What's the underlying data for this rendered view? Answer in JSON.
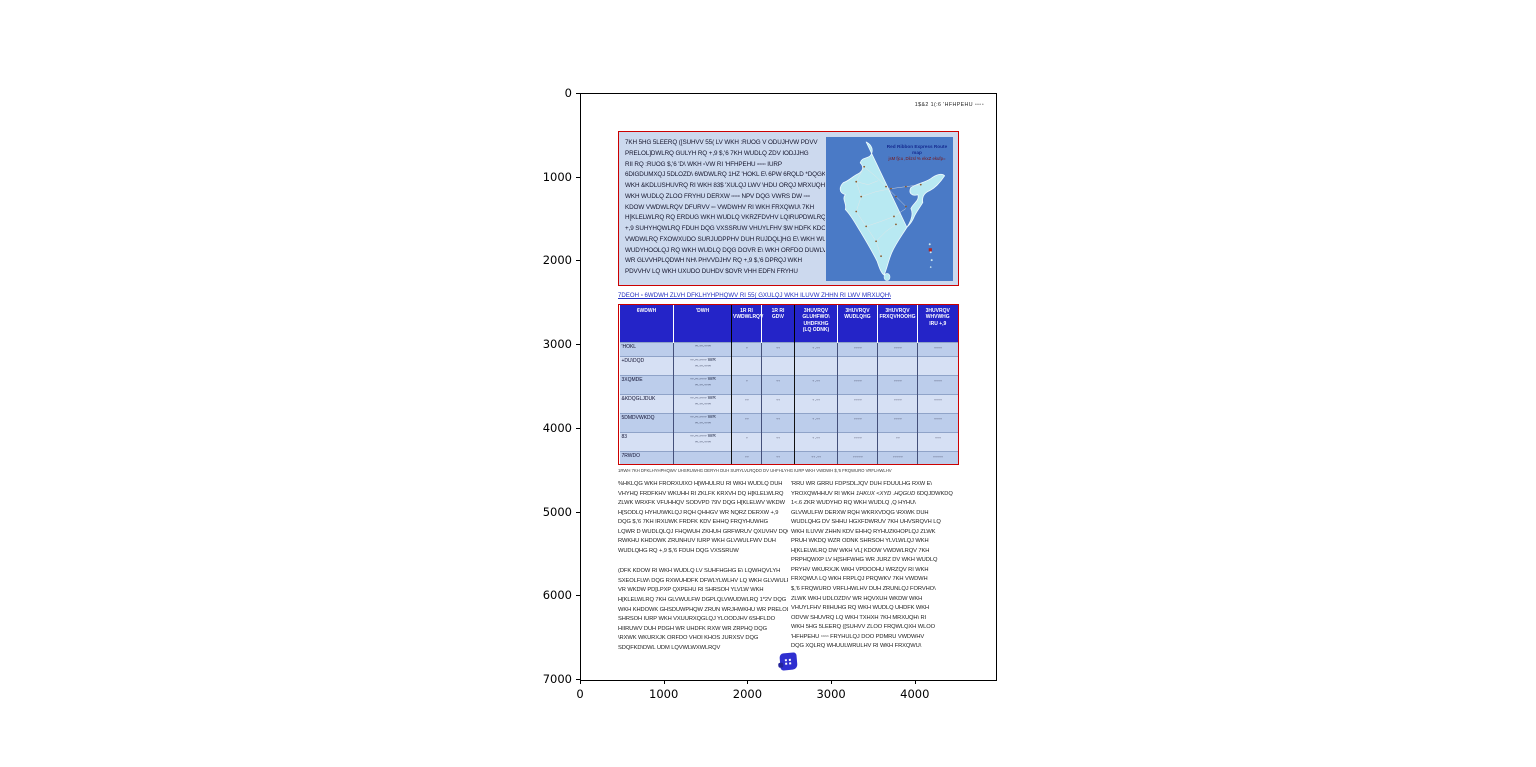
{
  "accent_colors": {
    "box_border": "#cc0000",
    "box_fill": "#ccd9ee",
    "table_header": "#2424c8",
    "row_shade_a": "#bccdeb",
    "row_shade_b": "#d6e0f4",
    "map_bg": "#4a7ac6",
    "map_land": "#b8e9f2",
    "caption_blue": "#2430c0",
    "stamp_blue": "#2f2fd0",
    "map_marker_red": "#b22222"
  },
  "axes": {
    "x_ticks": [
      "0",
      "1000",
      "2000",
      "3000",
      "4000"
    ],
    "y_ticks": [
      "0",
      "1000",
      "2000",
      "3000",
      "4000",
      "5000",
      "6000",
      "7000"
    ]
  },
  "page": {
    "header_right": "1$&2 1(:6  'HFHPEHU ▫▫▫▫",
    "intro_box": {
      "lines": [
        "7KH 5HG 5LEERQ ([SUHVV 55( LV WKH :RUOG V ODUJHVW PDVV",
        "PRELOL]DWLRQ GULYH RQ +,9 $,'6 7KH WUDLQ ZDV IODJJHG",
        "RII RQ :RUOG $,'6 'D\\ WKH ▫VW RI 'HFHPEHU ▫▫▫▫ IURP",
        "6DIGDUMXQJ 5DLOZD\\ 6WDWLRQ 1HZ 'HOKL E\\ 6PW 6RQLD *DQGKL",
        "WKH &KDLUSHUVRQ RI WKH 83$ 'XULQJ LWV \\HDU ORQJ MRXUQH\\",
        "WKH WUDLQ ZLOO FRYHU DERXW ▫▫▫▫ NPV DQG VWRS DW ▫▫▫",
        "KDOW VWDWLRQV DFURVV ▫▫ VWDWHV RI WKH FRXQWU\\ 7KH",
        "H[KLELWLRQ RQ ERDUG WKH WUDLQ VKRZFDVHV LQIRUPDWLRQ RQ",
        "+,9 SUHYHQWLRQ FDUH DQG VXSSRUW VHUYLFHV $W HDFK KDOW",
        "VWDWLRQ FXOWXUDO SURJUDPPHV DUH RUJDQL]HG E\\ WKH WURXSHV",
        "WUDYHOOLQJ RQ WKH WUDLQ DQG DOVR E\\ WKH ORFDO DUWLVWV",
        "WR GLVVHPLQDWH NH\\ PHVVDJHV RQ +,9 $,'6 DPRQJ WKH",
        "PDVVHV LQ WKH UXUDO DUHDV $OVR VHH EDFN FRYHU"
      ]
    },
    "map": {
      "title_line1": "Red Ribbon Express Route map",
      "title_line2": "jsM fjcu ,Dlizsl % ekxZ ekufp="
    },
    "table_caption": "7DEOH ▫  6WDWH ZLVH DFKLHYHPHQWV RI 55( GXULQJ WKH ILUVW ZHHN RI LWV MRXUQH\\",
    "table": {
      "headers": [
        "6WDWH",
        "'DWH",
        "1R RI\nVWDWLRQV",
        "1R RI\nGD\\V",
        "3HUVRQV\nGLUHFWO\\\nUHDFKHG\n(LQ ODNK)",
        "3HUVRQV\nWUDLQHG",
        "3HUVRQV\nFRXQVHOOHG",
        "3HUVRQV\nWHVWHG\nIRU +,9"
      ],
      "rows": [
        {
          "state": "'HOKL",
          "date": "▫▫.▫▫.▫▫▫▫",
          "values": [
            "▫",
            "▫▫",
            "▫.▫▫",
            "▫▫▫▫",
            "▫▫▫▫",
            "▫▫▫▫"
          ]
        },
        {
          "state": "+DU\\DQD",
          "date": "▫▫.▫▫.▫▫▫▫ WR\n▫▫.▫▫.▫▫▫▫",
          "values": [
            "",
            "",
            "",
            "",
            "",
            ""
          ]
        },
        {
          "state": "3XQMDE",
          "date": "▫▫.▫▫.▫▫▫▫ WR\n▫▫.▫▫.▫▫▫▫",
          "values": [
            "▫",
            "▫▫",
            "▫.▫▫",
            "▫▫▫▫",
            "▫▫▫▫",
            "▫▫▫▫"
          ]
        },
        {
          "state": "&KDQGLJDUK",
          "date": "▫▫.▫▫.▫▫▫▫ WR\n▫▫.▫▫.▫▫▫▫",
          "values": [
            "▫▫",
            "▫▫",
            "▫.▫▫",
            "▫▫▫▫",
            "▫▫▫▫",
            "▫▫▫▫"
          ]
        },
        {
          "state": "5DMDVWKDQ",
          "date": "▫▫.▫▫.▫▫▫▫ WR\n▫▫.▫▫.▫▫▫▫",
          "values": [
            "▫▫",
            "▫▫",
            "▫.▫▫",
            "▫▫▫▫",
            "▫▫▫▫",
            "▫▫▫▫"
          ]
        },
        {
          "state": "83",
          "date": "▫▫.▫▫.▫▫▫▫ WR\n▫▫.▫▫.▫▫▫▫",
          "values": [
            "▫",
            "▫▫",
            "▫.▫▫",
            "▫▫▫▫",
            "▫▫",
            "▫▫▫"
          ]
        },
        {
          "state": "7RWDO",
          "date": "",
          "values": [
            "▫▫",
            "▫▫",
            "▫▫.▫▫",
            "▫▫▫▫▫",
            "▫▫▫▫▫",
            "▫▫▫▫▫"
          ]
        }
      ],
      "footnote": "1RWH  7KH DFKLHYHPHQWV UHSRUWHG DERYH DUH SURYLVLRQDO DV UHFHLYHG IURP WKH VWDWH $,'6 FRQWURO VRFLHWLHV"
    },
    "columns": {
      "left_para1": [
        "%HKLQG WKH FRORXUIXO H[WHULRU RI WKH WUDLQ DUH",
        "VHYHQ FRDFKHV WKUHH RI ZKLFK KRXVH DQ H[KLELWLRQ",
        "ZLWK WRXFK VFUHHQV SODVPD 79V DQG H[KLELWV WKDW",
        "H[SODLQ HYHU\\WKLQJ RQH QHHGV WR NQRZ DERXW +,9",
        "DQG $,'6 7KH IRXUWK FRDFK KDV EHHQ FRQYHUWHG",
        "LQWR D WUDLQLQJ FHQWUH ZKHUH GRFWRUV QXUVHV DQG",
        "RWKHU KHDOWK ZRUNHUV IURP WKH GLVWULFWV DUH",
        "WUDLQHG RQ +,9 $,'6 FDUH DQG VXSSRUW"
      ],
      "left_para2": [
        "(DFK KDOW RI WKH WUDLQ LV SUHFHGHG E\\ LQWHQVLYH",
        "SXEOLFLW\\ DQG RXWUHDFK DFWLYLWLHV LQ WKH GLVWULFW",
        "VR WKDW PD[LPXP QXPEHU RI SHRSOH YLVLW WKH",
        "H[KLELWLRQ 7KH GLVWULFW DGPLQLVWUDWLRQ 1*2V DQG",
        "WKH KHDOWK GHSDUWPHQW ZRUN WRJHWKHU WR PRELOL]H",
        "SHRSOH IURP WKH VXUURXQGLQJ YLOODJHV 6SHFLDO",
        "HIIRUWV DUH PDGH WR UHDFK RXW WR ZRPHQ DQG",
        "\\RXWK WKURXJK ORFDO VHOI KHOS JURXSV DQG",
        "SDQFKD\\DWL UDM LQVWLWXWLRQV"
      ],
      "right_lines": [
        "'RRU WR GRRU FDPSDLJQV DUH FDUULHG RXW E\\",
        {
          "pre": "YROXQWHHUV RI WKH ",
          "italic": "1HKUX <XYD .HQGUD",
          "post": " 6DQJDWKDQ"
        },
        "1<.6 ZKR WUDYHO RQ WKH WUDLQ ,Q HYHU\\",
        "GLVWULFW DERXW RQH WKRXVDQG \\RXWK DUH",
        "WUDLQHG DV SHHU HGXFDWRUV 7KH UHVSRQVH LQ",
        "WKH ILUVW ZHHN KDV EHHQ RYHUZKHOPLQJ ZLWK",
        "PRUH WKDQ WZR ODNK SHRSOH YLVLWLQJ WKH",
        "H[KLELWLRQ DW WKH VL[ KDOW VWDWLRQV 7KH",
        "PRPHQWXP LV H[SHFWHG WR JURZ DV WKH WUDLQ",
        "PRYHV WKURXJK WKH VPDOOHU WRZQV RI WKH",
        "FRXQWU\\ LQ WKH FRPLQJ PRQWKV 7KH VWDWH",
        "$,'6 FRQWURO VRFLHWLHV DUH ZRUNLQJ FORVHO\\",
        "ZLWK WKH UDLOZD\\V WR HQVXUH WKDW WKH",
        "VHUYLFHV RIIHUHG RQ WKH WUDLQ UHDFK WKH",
        "ODVW SHUVRQ LQ WKH TXHXH 7KH MRXUQH\\ RI",
        "WKH 5HG 5LEERQ ([SUHVV ZLOO FRQWLQXH WLOO",
        "'HFHPEHU ▫▫▫▫ FRYHULQJ DOO PDMRU VWDWHV",
        "DQG XQLRQ WHUULWRULHV RI WKH FRXQWU\\"
      ]
    }
  }
}
